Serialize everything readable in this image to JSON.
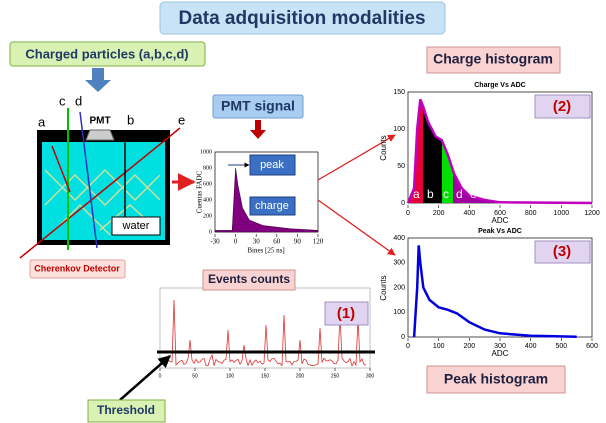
{
  "title": "Data adquisition modalities",
  "particles": "Charged particles (a,b,c,d)",
  "detector": {
    "label": "Cherenkov Detector",
    "pmt": "PMT",
    "water": "water",
    "tracks": [
      "a",
      "c",
      "d",
      "b",
      "e"
    ]
  },
  "pmt_signal": {
    "title": "PMT signal",
    "ylabel": "Cuentas FADC",
    "xlabel": "Bines [25 ns]",
    "yticks": [
      "0",
      "200",
      "400",
      "600",
      "800",
      "1000"
    ],
    "xticks": [
      "-30",
      "0",
      "30",
      "60",
      "90",
      "120"
    ],
    "peak": "peak",
    "charge": "charge"
  },
  "charge_histogram": {
    "label": "Charge histogram",
    "title": "Charge Vs ADC",
    "ylabel": "Counts",
    "xlabel": "ADC",
    "yticks": [
      "0",
      "50",
      "100",
      "150"
    ],
    "xticks": [
      "0",
      "200",
      "400",
      "600",
      "800",
      "1000",
      "1200"
    ],
    "marker": "(2)",
    "segments": [
      "a",
      "b",
      "c",
      "d",
      "e"
    ]
  },
  "peak_histogram": {
    "label": "Peak histogram",
    "title": "Peak Vs ADC",
    "ylabel": "Counts",
    "xlabel": "ADC",
    "yticks": [
      "0",
      "100",
      "200",
      "300",
      "400"
    ],
    "xticks": [
      "0",
      "100",
      "200",
      "300",
      "400",
      "500",
      "600"
    ],
    "marker": "(3)"
  },
  "events": {
    "label": "Events counts",
    "marker": "(1)",
    "xticks": [
      "0",
      "50",
      "100",
      "150",
      "200",
      "250",
      "300"
    ],
    "threshold": "Threshold"
  }
}
